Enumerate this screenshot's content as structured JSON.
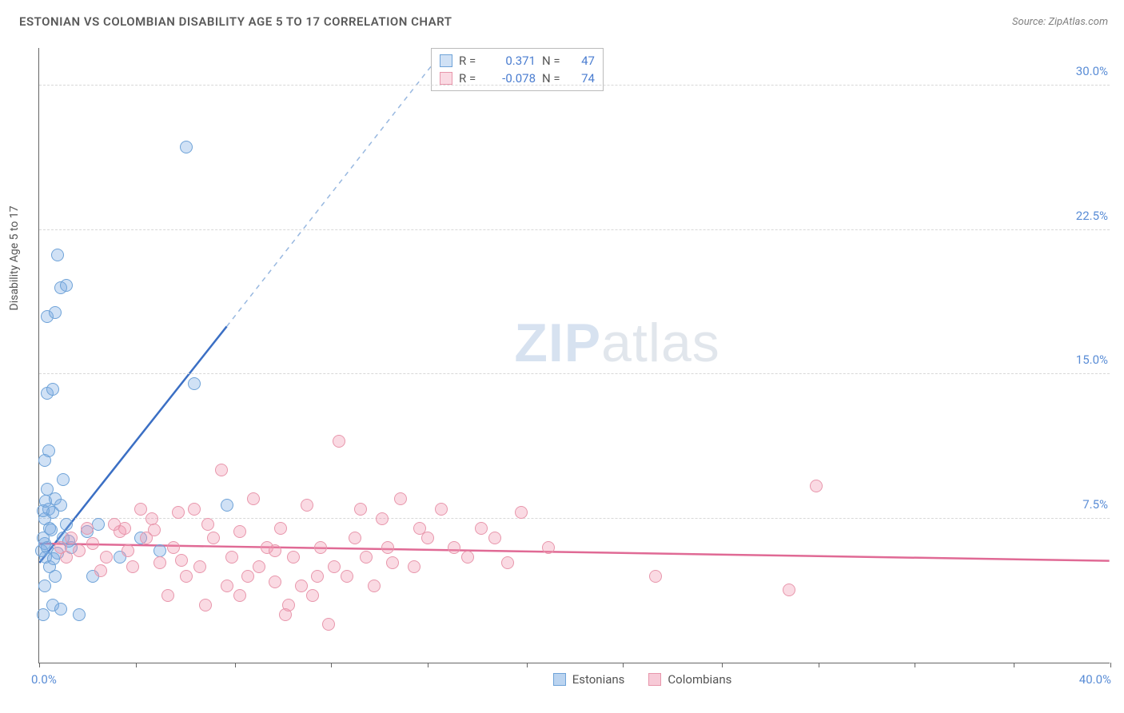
{
  "title": "ESTONIAN VS COLOMBIAN DISABILITY AGE 5 TO 17 CORRELATION CHART",
  "source_label": "Source: ",
  "source_name": "ZipAtlas.com",
  "y_axis_title": "Disability Age 5 to 17",
  "watermark_zip": "ZIP",
  "watermark_atlas": "atlas",
  "chart": {
    "type": "scatter",
    "xlim": [
      0,
      40
    ],
    "ylim": [
      0,
      32
    ],
    "y_ticks": [
      7.5,
      15.0,
      22.5,
      30.0
    ],
    "y_tick_labels": [
      "7.5%",
      "15.0%",
      "22.5%",
      "30.0%"
    ],
    "x_label_min": "0.0%",
    "x_label_max": "40.0%",
    "x_tick_positions": [
      0,
      3.6,
      7.3,
      10.9,
      14.5,
      18.2,
      21.8,
      25.5,
      29.1,
      32.7,
      36.4,
      40
    ],
    "background_color": "#ffffff",
    "grid_color": "#d8d8d8",
    "marker_radius": 8,
    "series": [
      {
        "name": "Estonians",
        "fill": "rgba(120,170,225,0.35)",
        "stroke": "#6fa3d8",
        "trend_color": "#3b6fc4",
        "trend_dash_color": "#98b8e0",
        "R": "0.371",
        "N": "47",
        "trend": {
          "x1": 0,
          "y1": 5.2,
          "x2": 7.0,
          "y2": 17.5,
          "x2_dash": 18.0,
          "y2_dash": 37.0
        },
        "points": [
          [
            0.1,
            5.8
          ],
          [
            0.2,
            6.2
          ],
          [
            0.15,
            6.5
          ],
          [
            0.3,
            6.0
          ],
          [
            0.25,
            5.5
          ],
          [
            0.4,
            7.0
          ],
          [
            0.2,
            7.5
          ],
          [
            0.35,
            8.0
          ],
          [
            0.5,
            7.8
          ],
          [
            0.6,
            8.5
          ],
          [
            0.3,
            9.0
          ],
          [
            0.8,
            8.2
          ],
          [
            0.4,
            5.0
          ],
          [
            0.6,
            4.5
          ],
          [
            0.9,
            6.5
          ],
          [
            1.0,
            7.2
          ],
          [
            1.2,
            6.0
          ],
          [
            0.2,
            4.0
          ],
          [
            0.5,
            3.0
          ],
          [
            0.15,
            2.5
          ],
          [
            0.2,
            10.5
          ],
          [
            0.3,
            14.0
          ],
          [
            0.5,
            14.2
          ],
          [
            0.3,
            18.0
          ],
          [
            0.6,
            18.2
          ],
          [
            0.8,
            19.5
          ],
          [
            1.0,
            19.6
          ],
          [
            0.7,
            21.2
          ],
          [
            5.5,
            26.8
          ],
          [
            5.8,
            14.5
          ],
          [
            7.0,
            8.2
          ],
          [
            3.8,
            6.5
          ],
          [
            3.0,
            5.5
          ],
          [
            2.0,
            4.5
          ],
          [
            1.5,
            2.5
          ],
          [
            0.8,
            2.8
          ],
          [
            1.8,
            6.8
          ],
          [
            2.2,
            7.2
          ],
          [
            0.9,
            9.5
          ],
          [
            1.1,
            6.3
          ],
          [
            0.7,
            5.7
          ],
          [
            0.15,
            7.9
          ],
          [
            0.45,
            6.9
          ],
          [
            0.25,
            8.4
          ],
          [
            0.55,
            5.4
          ],
          [
            4.5,
            5.8
          ],
          [
            0.35,
            11.0
          ]
        ]
      },
      {
        "name": "Colombians",
        "fill": "rgba(240,150,175,0.35)",
        "stroke": "#e897ac",
        "trend_color": "#e06a95",
        "R": "-0.078",
        "N": "74",
        "trend": {
          "x1": 0,
          "y1": 6.2,
          "x2": 40,
          "y2": 5.3
        },
        "points": [
          [
            0.8,
            6.0
          ],
          [
            1.2,
            6.5
          ],
          [
            1.5,
            5.8
          ],
          [
            2.0,
            6.2
          ],
          [
            2.5,
            5.5
          ],
          [
            3.0,
            6.8
          ],
          [
            3.2,
            7.0
          ],
          [
            3.5,
            5.0
          ],
          [
            4.0,
            6.5
          ],
          [
            4.2,
            7.5
          ],
          [
            4.5,
            5.2
          ],
          [
            5.0,
            6.0
          ],
          [
            5.2,
            7.8
          ],
          [
            5.5,
            4.5
          ],
          [
            5.8,
            8.0
          ],
          [
            6.0,
            5.0
          ],
          [
            6.5,
            6.5
          ],
          [
            6.8,
            10.0
          ],
          [
            7.0,
            4.0
          ],
          [
            7.2,
            5.5
          ],
          [
            7.5,
            6.8
          ],
          [
            7.8,
            4.5
          ],
          [
            8.0,
            8.5
          ],
          [
            8.2,
            5.0
          ],
          [
            8.5,
            6.0
          ],
          [
            8.8,
            4.2
          ],
          [
            9.0,
            7.0
          ],
          [
            9.2,
            2.5
          ],
          [
            9.5,
            5.5
          ],
          [
            9.8,
            4.0
          ],
          [
            10.0,
            8.2
          ],
          [
            10.2,
            3.5
          ],
          [
            10.5,
            6.0
          ],
          [
            10.8,
            2.0
          ],
          [
            11.0,
            5.0
          ],
          [
            11.2,
            11.5
          ],
          [
            11.5,
            4.5
          ],
          [
            12.0,
            8.0
          ],
          [
            12.2,
            5.5
          ],
          [
            12.5,
            4.0
          ],
          [
            12.8,
            7.5
          ],
          [
            13.0,
            6.0
          ],
          [
            13.5,
            8.5
          ],
          [
            14.0,
            5.0
          ],
          [
            14.5,
            6.5
          ],
          [
            15.0,
            8.0
          ],
          [
            15.5,
            6.0
          ],
          [
            16.0,
            5.5
          ],
          [
            16.5,
            7.0
          ],
          [
            17.0,
            6.5
          ],
          [
            17.5,
            5.2
          ],
          [
            18.0,
            7.8
          ],
          [
            19.0,
            6.0
          ],
          [
            29.0,
            9.2
          ],
          [
            23.0,
            4.5
          ],
          [
            28.0,
            3.8
          ],
          [
            2.8,
            7.2
          ],
          [
            3.8,
            8.0
          ],
          [
            4.8,
            3.5
          ],
          [
            6.2,
            3.0
          ],
          [
            7.5,
            3.5
          ],
          [
            8.8,
            5.8
          ],
          [
            9.3,
            3.0
          ],
          [
            10.4,
            4.5
          ],
          [
            11.8,
            6.5
          ],
          [
            13.2,
            5.2
          ],
          [
            14.2,
            7.0
          ],
          [
            1.0,
            5.5
          ],
          [
            1.8,
            7.0
          ],
          [
            2.3,
            4.8
          ],
          [
            3.3,
            5.8
          ],
          [
            4.3,
            6.9
          ],
          [
            5.3,
            5.3
          ],
          [
            6.3,
            7.2
          ]
        ]
      }
    ]
  },
  "stats_labels": {
    "R": "R =",
    "N": "N ="
  },
  "legend": [
    {
      "label": "Estonians",
      "fill": "rgba(120,170,225,0.5)",
      "stroke": "#6fa3d8"
    },
    {
      "label": "Colombians",
      "fill": "rgba(240,150,175,0.5)",
      "stroke": "#e897ac"
    }
  ]
}
